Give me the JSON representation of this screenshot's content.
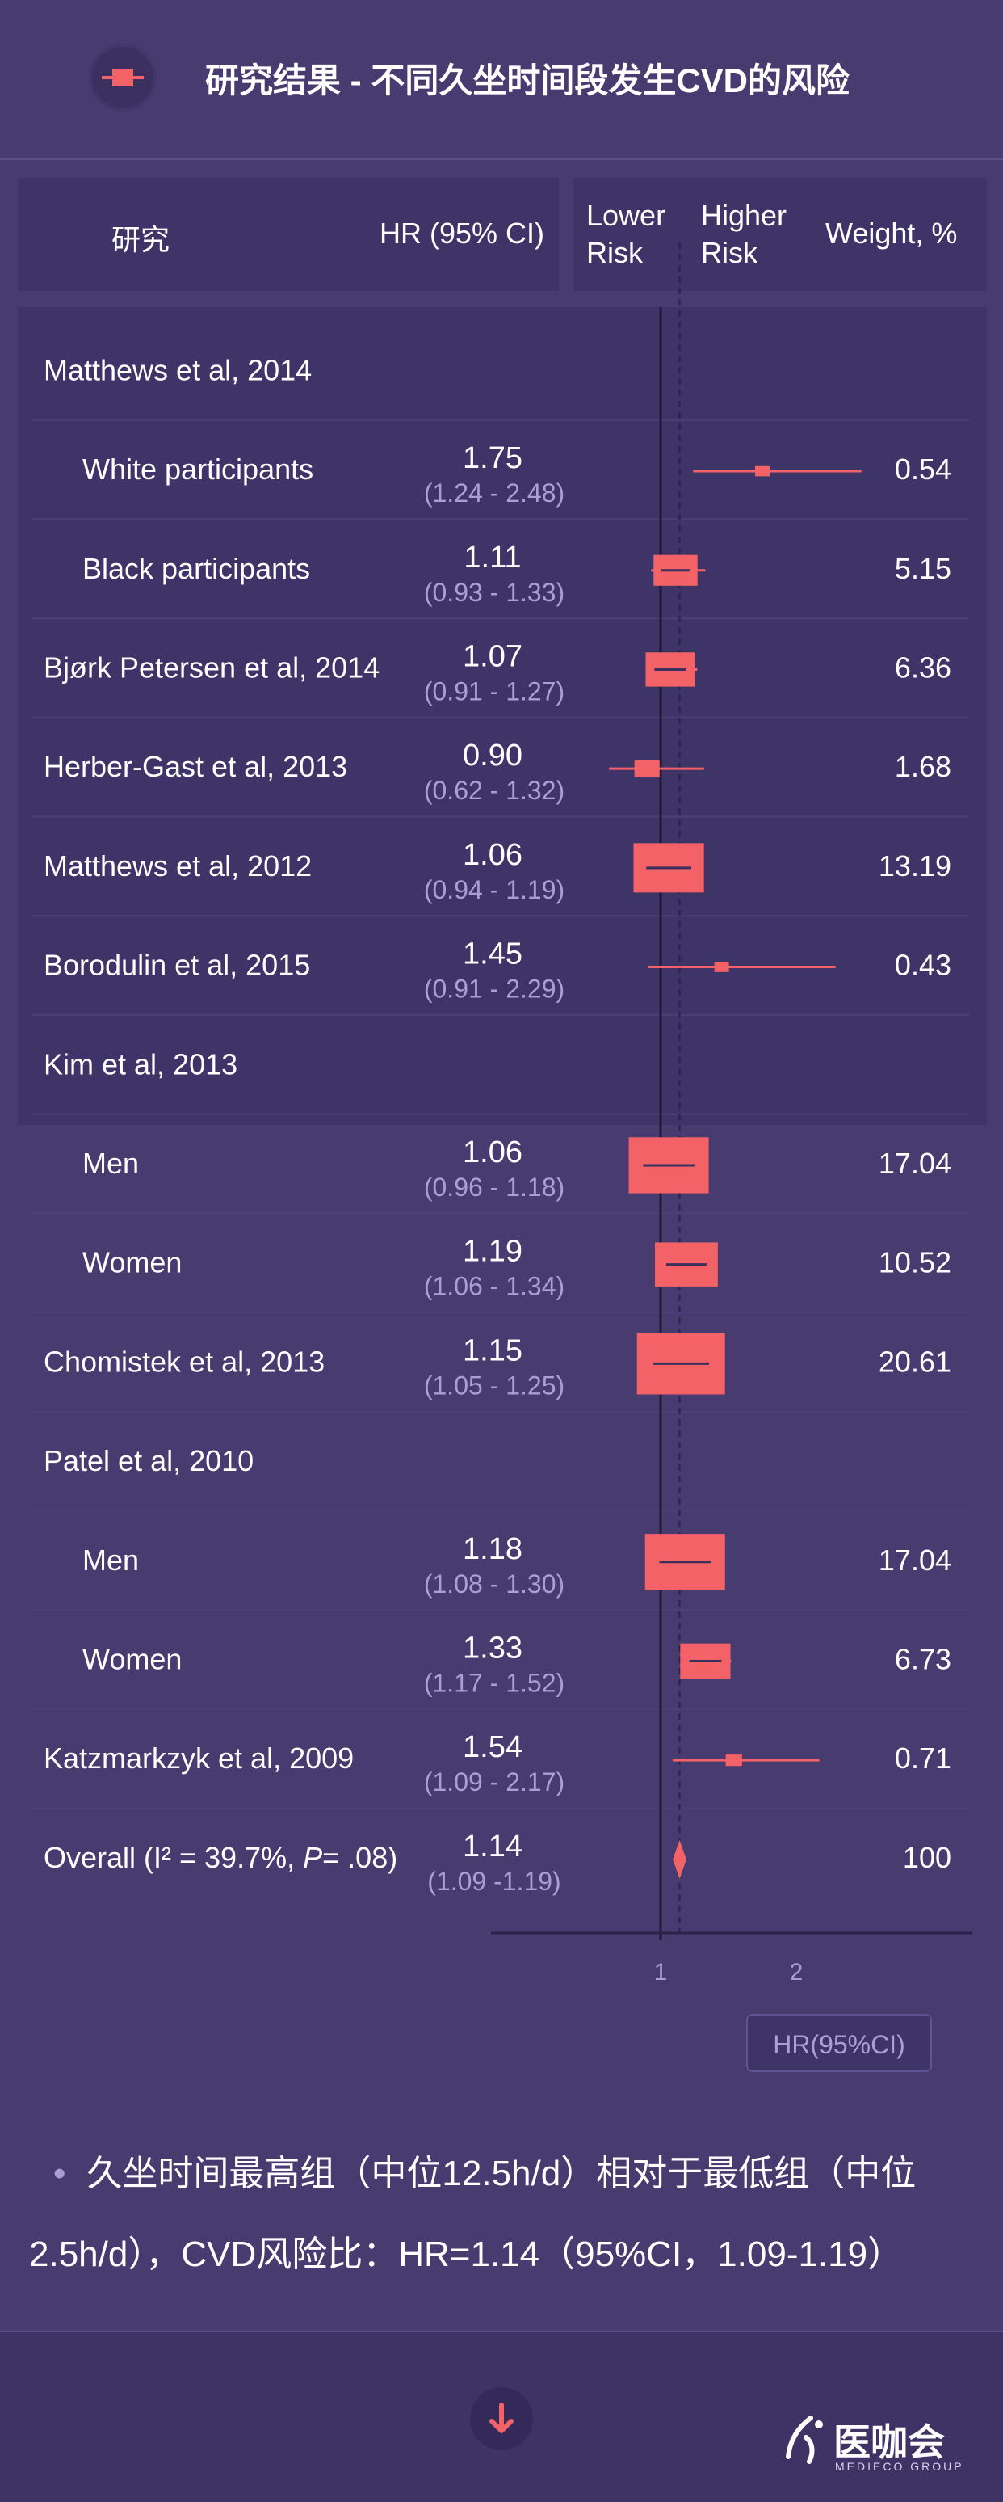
{
  "header": {
    "title": "研究结果 - 不同久坐时间段发生CVD的风险",
    "icon": "forest-plot-icon"
  },
  "columns": {
    "study": "研究",
    "hr": "HR (95% CI)",
    "lower_risk": [
      "Lower",
      "Risk"
    ],
    "higher_risk": [
      "Higher",
      "Risk"
    ],
    "weight": "Weight, %"
  },
  "chart_data": {
    "type": "forest",
    "x_ticks": [
      1,
      2
    ],
    "reference_line": 1,
    "pooled_line": 1.14,
    "x_axis_button": "HR(95%CI)",
    "rows": [
      {
        "label": "Matthews et al, 2014",
        "indent": 0
      },
      {
        "label": "White participants",
        "indent": 1,
        "hr": "1.75",
        "ci": "(1.24 - 2.48)",
        "hr_v": 1.75,
        "lo": 1.24,
        "hi": 2.48,
        "weight": "0.54",
        "w": 0.54
      },
      {
        "label": "Black participants",
        "indent": 1,
        "hr": "1.11",
        "ci": "(0.93 - 1.33)",
        "hr_v": 1.11,
        "lo": 0.93,
        "hi": 1.33,
        "weight": "5.15",
        "w": 5.15
      },
      {
        "label": "Bjørk Petersen et al, 2014",
        "indent": 0,
        "hr": "1.07",
        "ci": "(0.91 - 1.27)",
        "hr_v": 1.07,
        "lo": 0.91,
        "hi": 1.27,
        "weight": "6.36",
        "w": 6.36
      },
      {
        "label": "Herber-Gast et al, 2013",
        "indent": 0,
        "hr": "0.90",
        "ci": "(0.62 - 1.32)",
        "hr_v": 0.9,
        "lo": 0.62,
        "hi": 1.32,
        "weight": "1.68",
        "w": 1.68
      },
      {
        "label": "Matthews et al, 2012",
        "indent": 0,
        "hr": "1.06",
        "ci": "(0.94 - 1.19)",
        "hr_v": 1.06,
        "lo": 0.94,
        "hi": 1.19,
        "weight": "13.19",
        "w": 13.19
      },
      {
        "label": "Borodulin et al, 2015",
        "indent": 0,
        "hr": "1.45",
        "ci": "(0.91 - 2.29)",
        "hr_v": 1.45,
        "lo": 0.91,
        "hi": 2.29,
        "weight": "0.43",
        "w": 0.43
      },
      {
        "label": "Kim et al, 2013",
        "indent": 0
      },
      {
        "label": "Men",
        "indent": 1,
        "hr": "1.06",
        "ci": "(0.96 - 1.18)",
        "hr_v": 1.06,
        "lo": 0.96,
        "hi": 1.18,
        "weight": "17.04",
        "w": 17.04
      },
      {
        "label": "Women",
        "indent": 1,
        "hr": "1.19",
        "ci": "(1.06 - 1.34)",
        "hr_v": 1.19,
        "lo": 1.06,
        "hi": 1.34,
        "weight": "10.52",
        "w": 10.52
      },
      {
        "label": "Chomistek et al, 2013",
        "indent": 0,
        "hr": "1.15",
        "ci": "(1.05 - 1.25)",
        "hr_v": 1.15,
        "lo": 1.05,
        "hi": 1.25,
        "weight": "20.61",
        "w": 20.61
      },
      {
        "label": "Patel et al, 2010",
        "indent": 0
      },
      {
        "label": "Men",
        "indent": 1,
        "hr": "1.18",
        "ci": "(1.08 - 1.30)",
        "hr_v": 1.18,
        "lo": 1.08,
        "hi": 1.3,
        "weight": "17.04",
        "w": 17.04
      },
      {
        "label": "Women",
        "indent": 1,
        "hr": "1.33",
        "ci": "(1.17 - 1.52)",
        "hr_v": 1.33,
        "lo": 1.17,
        "hi": 1.52,
        "weight": "6.73",
        "w": 6.73
      },
      {
        "label": "Katzmarkzyk et al, 2009",
        "indent": 0,
        "hr": "1.54",
        "ci": "(1.09 - 2.17)",
        "hr_v": 1.54,
        "lo": 1.09,
        "hi": 2.17,
        "weight": "0.71",
        "w": 0.71
      },
      {
        "label": "Overall (I² = 39.7%, P= .08)",
        "label_plain": "Overall (I² = 39.7%, ",
        "label_italic": "P",
        "label_tail": "= .08)",
        "indent": 0,
        "hr": "1.14",
        "ci": "(1.09  -1.19)",
        "hr_v": 1.14,
        "lo": 1.09,
        "hi": 1.19,
        "weight": "100",
        "w": 100,
        "overall": true
      }
    ]
  },
  "summary": {
    "bullet": "•",
    "text": "久坐时间最高组（中位12.5h/d）相对于最低组（中位2.5h/d），CVD风险比：HR=1.14（95%CI，1.09-1.19）"
  },
  "footer": {
    "logo_name": "医咖会",
    "logo_sub": "MEDIECO GROUP"
  },
  "colors": {
    "background": "#473b70",
    "panel": "#3e3468",
    "marker": "#f26266",
    "muted_text": "#a89fd6"
  }
}
